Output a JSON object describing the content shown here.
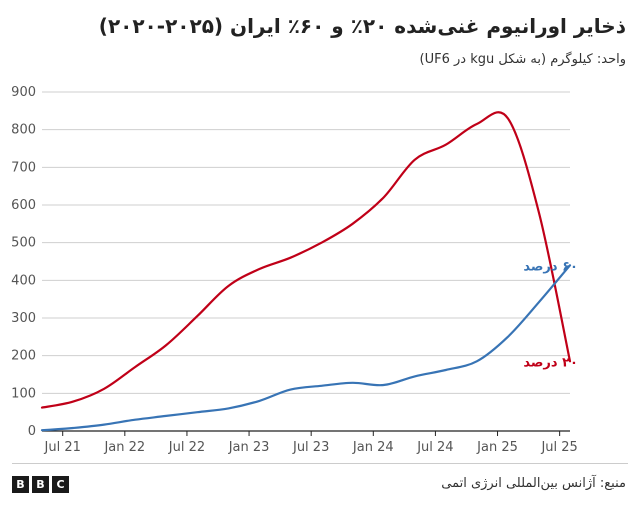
{
  "header": {
    "title": "ذخایر اورانیوم غنی‌شده ۲۰٪ و ۶۰٪ ایران (۲۰۲۵-۲۰۲۰)",
    "subtitle": "واحد: کیلوگرم (به شکل kgu در UF6)"
  },
  "footer": {
    "source": "منبع: آژانس بین‌المللی انرژی اتمی",
    "logo_letters": [
      "B",
      "B",
      "C"
    ]
  },
  "colors": {
    "series_20": "#c00018",
    "series_60": "#3874b5",
    "grid": "#cfcfcf",
    "axis": "#222222"
  },
  "chart_data": {
    "type": "line",
    "title": "ذخایر اورانیوم غنی‌شده ۲۰٪ و ۶۰٪ ایران (۲۰۲۵-۲۰۲۰)",
    "ylabel": "واحد: کیلوگرم (به شکل kgu در UF6)",
    "xlabel": "",
    "ylim": [
      0,
      900
    ],
    "yticks": [
      0,
      100,
      200,
      300,
      400,
      500,
      600,
      700,
      800,
      900
    ],
    "xlim": [
      "2021-05",
      "2025-08"
    ],
    "xticks": [
      {
        "x": "2021-07",
        "label": "Jul 21"
      },
      {
        "x": "2022-01",
        "label": "Jan 22"
      },
      {
        "x": "2022-07",
        "label": "Jul 22"
      },
      {
        "x": "2023-01",
        "label": "Jan 23"
      },
      {
        "x": "2023-07",
        "label": "Jul 23"
      },
      {
        "x": "2024-01",
        "label": "Jan 24"
      },
      {
        "x": "2024-07",
        "label": "Jul 24"
      },
      {
        "x": "2025-01",
        "label": "Jan 25"
      },
      {
        "x": "2025-07",
        "label": "Jul 25"
      }
    ],
    "grid": "horizontal",
    "legend": "direct labels at line ends (right)",
    "series": [
      {
        "name": "۲۰ درصد",
        "color": "#c00018",
        "points": [
          {
            "x": "2021-05",
            "y": 62
          },
          {
            "x": "2021-08",
            "y": 78
          },
          {
            "x": "2021-11",
            "y": 112
          },
          {
            "x": "2022-02",
            "y": 170
          },
          {
            "x": "2022-05",
            "y": 228
          },
          {
            "x": "2022-08",
            "y": 305
          },
          {
            "x": "2022-11",
            "y": 385
          },
          {
            "x": "2023-02",
            "y": 430
          },
          {
            "x": "2023-05",
            "y": 460
          },
          {
            "x": "2023-08",
            "y": 500
          },
          {
            "x": "2023-11",
            "y": 550
          },
          {
            "x": "2024-02",
            "y": 620
          },
          {
            "x": "2024-05",
            "y": 720
          },
          {
            "x": "2024-08",
            "y": 760
          },
          {
            "x": "2024-11",
            "y": 815
          },
          {
            "x": "2025-02",
            "y": 830
          },
          {
            "x": "2025-05",
            "y": 580
          },
          {
            "x": "2025-08",
            "y": 185
          }
        ]
      },
      {
        "name": "۶۰ درصد",
        "color": "#3874b5",
        "points": [
          {
            "x": "2021-05",
            "y": 2
          },
          {
            "x": "2021-08",
            "y": 8
          },
          {
            "x": "2021-11",
            "y": 17
          },
          {
            "x": "2022-02",
            "y": 30
          },
          {
            "x": "2022-05",
            "y": 40
          },
          {
            "x": "2022-08",
            "y": 50
          },
          {
            "x": "2022-11",
            "y": 60
          },
          {
            "x": "2023-02",
            "y": 80
          },
          {
            "x": "2023-05",
            "y": 110
          },
          {
            "x": "2023-08",
            "y": 120
          },
          {
            "x": "2023-11",
            "y": 128
          },
          {
            "x": "2024-02",
            "y": 122
          },
          {
            "x": "2024-05",
            "y": 145
          },
          {
            "x": "2024-08",
            "y": 162
          },
          {
            "x": "2024-11",
            "y": 185
          },
          {
            "x": "2025-02",
            "y": 250
          },
          {
            "x": "2025-05",
            "y": 342
          },
          {
            "x": "2025-08",
            "y": 440
          }
        ]
      }
    ]
  }
}
